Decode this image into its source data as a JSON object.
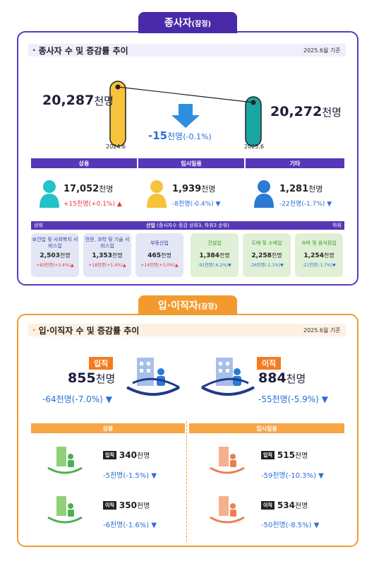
{
  "employees": {
    "tab_title": "종사자",
    "tab_suffix": "(잠정)",
    "section_title": "종사자 수 및 증감률 추이",
    "basis": "2025.6월 기준",
    "left": {
      "value": "20,287",
      "unit": "천명",
      "date": "2024.6"
    },
    "right": {
      "value": "20,272",
      "unit": "천명",
      "date": "2025.6"
    },
    "change": {
      "value": "-15",
      "unit": "천명",
      "pct": "(-0.1%)"
    },
    "columns": [
      {
        "head": "상용",
        "value": "17,052",
        "unit": "천명",
        "change": "+15천명(+0.1%)",
        "dir": "up",
        "color": "#23c2c8"
      },
      {
        "head": "임시일용",
        "value": "1,939",
        "unit": "천명",
        "change": "-8천명(-0.4%)",
        "dir": "down",
        "color": "#f7c33a"
      },
      {
        "head": "기타",
        "value": "1,281",
        "unit": "천명",
        "change": "-22천명(-1.7%)",
        "dir": "down",
        "color": "#2a7ad6"
      }
    ],
    "industry": {
      "title": "산업",
      "subtitle": "(종사자수 증감 상위3, 하위3 순위)",
      "left_label": "상위",
      "right_label": "하위",
      "cards": [
        {
          "name": "보건업 및 사회복지 서비스업",
          "value": "2,503",
          "unit": "천명",
          "change": "+83천명(+3.4%)",
          "dir": "up",
          "group": "top"
        },
        {
          "name": "전문, 과학 및 기술 서비스업",
          "value": "1,353",
          "unit": "천명",
          "change": "+18천명(+1.4%)",
          "dir": "up",
          "group": "top"
        },
        {
          "name": "부동산업",
          "value": "465",
          "unit": "천명",
          "change": "+14천명(+3.0%)",
          "dir": "up",
          "group": "top"
        },
        {
          "name": "건설업",
          "value": "1,384",
          "unit": "천명",
          "change": "-91천명(-6.2%)",
          "dir": "down",
          "group": "bottom"
        },
        {
          "name": "도매 및 소매업",
          "value": "2,258",
          "unit": "천명",
          "change": "-26천명(-1.1%)",
          "dir": "down",
          "group": "bottom"
        },
        {
          "name": "숙박 및 음식점업",
          "value": "1,254",
          "unit": "천명",
          "change": "-21천명(-1.7%)",
          "dir": "down",
          "group": "bottom"
        }
      ]
    }
  },
  "turnover": {
    "tab_title": "입·이직자",
    "tab_suffix": "(잠정)",
    "section_title": "입·이직자 수 및 증감률 추이",
    "basis": "2025.6월 기준",
    "hire": {
      "tag": "입직",
      "value": "855",
      "unit": "천명",
      "change": "-64천명(-7.0%)"
    },
    "sep": {
      "tag": "이직",
      "value": "884",
      "unit": "천명",
      "change": "-55천명(-5.9%)"
    },
    "regular": {
      "head": "상용",
      "hire": {
        "tag": "입직",
        "value": "340",
        "unit": "천명",
        "change": "-5천명(-1.5%)"
      },
      "sep": {
        "tag": "이직",
        "value": "350",
        "unit": "천명",
        "change": "-6천명(-1.6%)"
      }
    },
    "temporary": {
      "head": "임시일용",
      "hire": {
        "tag": "입직",
        "value": "515",
        "unit": "천명",
        "change": "-59천명(-10.3%)"
      },
      "sep": {
        "tag": "이직",
        "value": "534",
        "unit": "천명",
        "change": "-50천명(-8.5%)"
      }
    }
  },
  "colors": {
    "purple": "#5637b8",
    "orange": "#f39a2e",
    "up": "#e53935",
    "down": "#2a6fd6"
  }
}
